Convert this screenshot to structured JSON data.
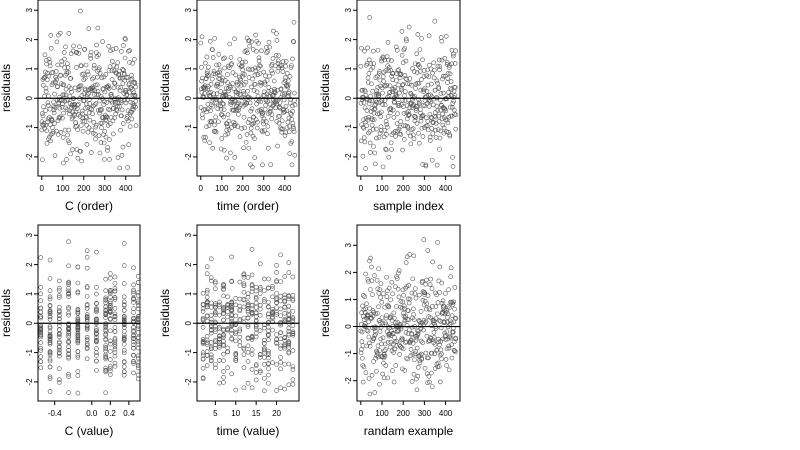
{
  "chart_data": [
    {
      "type": "scatter",
      "xlabel": "C (order)",
      "ylabel": "residuals",
      "xlim": [
        -18,
        468
      ],
      "ylim": [
        -2.65,
        3.35
      ],
      "xticks": [
        0,
        100,
        200,
        300,
        400
      ],
      "xtick_labels": [
        "0",
        "100",
        "200",
        "300",
        "400"
      ],
      "yticks": [
        -2,
        -1,
        0,
        1,
        2,
        3
      ],
      "ytick_labels": [
        "-2",
        "-1",
        "0",
        "1",
        "2",
        "3"
      ],
      "hline": 0,
      "n_points": 450,
      "x_kind": "index",
      "y_range": [
        -2.4,
        3.2
      ],
      "seed": 11
    },
    {
      "type": "scatter",
      "xlabel": "time (order)",
      "ylabel": "residuals",
      "xlim": [
        -18,
        468
      ],
      "ylim": [
        -2.65,
        3.35
      ],
      "xticks": [
        0,
        100,
        200,
        300,
        400
      ],
      "xtick_labels": [
        "0",
        "100",
        "200",
        "300",
        "400"
      ],
      "yticks": [
        -2,
        -1,
        0,
        1,
        2,
        3
      ],
      "ytick_labels": [
        "-2",
        "-1",
        "0",
        "1",
        "2",
        "3"
      ],
      "hline": 0,
      "n_points": 450,
      "x_kind": "index",
      "y_range": [
        -2.4,
        3.2
      ],
      "seed": 23
    },
    {
      "type": "scatter",
      "xlabel": "sample index",
      "ylabel": "residuals",
      "xlim": [
        -18,
        468
      ],
      "ylim": [
        -2.65,
        3.35
      ],
      "xticks": [
        0,
        100,
        200,
        300,
        400
      ],
      "xtick_labels": [
        "0",
        "100",
        "200",
        "300",
        "400"
      ],
      "yticks": [
        -2,
        -1,
        0,
        1,
        2,
        3
      ],
      "ytick_labels": [
        "-2",
        "-1",
        "0",
        "1",
        "2",
        "3"
      ],
      "hline": 0,
      "n_points": 450,
      "x_kind": "index",
      "y_range": [
        -2.4,
        3.2
      ],
      "seed": 37
    },
    {
      "type": "scatter",
      "xlabel": "C (value)",
      "ylabel": "residuals",
      "xlim": [
        -0.58,
        0.52
      ],
      "ylim": [
        -2.65,
        3.35
      ],
      "xticks": [
        -0.4,
        0.0,
        0.2,
        0.4
      ],
      "xtick_labels": [
        "-0.4",
        "0.0",
        "0.2",
        "0.4"
      ],
      "yticks": [
        -2,
        -1,
        0,
        1,
        2,
        3
      ],
      "ytick_labels": [
        "-2",
        "-1",
        "0",
        "1",
        "2",
        "3"
      ],
      "hline": 0,
      "n_points": 450,
      "x_kind": "levels",
      "x_levels": [
        -0.55,
        -0.45,
        -0.35,
        -0.25,
        -0.15,
        -0.05,
        0.05,
        0.15,
        0.2,
        0.25,
        0.35,
        0.45,
        0.5
      ],
      "y_range": [
        -2.4,
        3.2
      ],
      "seed": 41
    },
    {
      "type": "scatter",
      "xlabel": "time (value)",
      "ylabel": "residuals",
      "xlim": [
        0.5,
        25.5
      ],
      "ylim": [
        -2.65,
        3.35
      ],
      "xticks": [
        5,
        10,
        15,
        20
      ],
      "xtick_labels": [
        "5",
        "10",
        "15",
        "20"
      ],
      "yticks": [
        -2,
        -1,
        0,
        1,
        2,
        3
      ],
      "ytick_labels": [
        "-2",
        "-1",
        "0",
        "1",
        "2",
        "3"
      ],
      "hline": 0,
      "n_points": 450,
      "x_kind": "levels",
      "x_levels": [
        2,
        3,
        4,
        5,
        6,
        7,
        8,
        9,
        10,
        11,
        12,
        13,
        14,
        15,
        16,
        17,
        18,
        19,
        20,
        21,
        22,
        23,
        24
      ],
      "y_range": [
        -2.4,
        3.2
      ],
      "seed": 53
    },
    {
      "type": "scatter",
      "xlabel": "randam example",
      "ylabel": "residuals",
      "xlim": [
        -18,
        468
      ],
      "ylim": [
        -2.75,
        3.75
      ],
      "xticks": [
        0,
        100,
        200,
        300,
        400
      ],
      "xtick_labels": [
        "0",
        "100",
        "200",
        "300",
        "400"
      ],
      "yticks": [
        -2,
        -1,
        0,
        1,
        2,
        3
      ],
      "ytick_labels": [
        "-2",
        "-1",
        "0",
        "1",
        "2",
        "3"
      ],
      "hline": 0,
      "n_points": 450,
      "x_kind": "index",
      "y_range": [
        -2.5,
        3.4
      ],
      "seed": 67
    }
  ]
}
